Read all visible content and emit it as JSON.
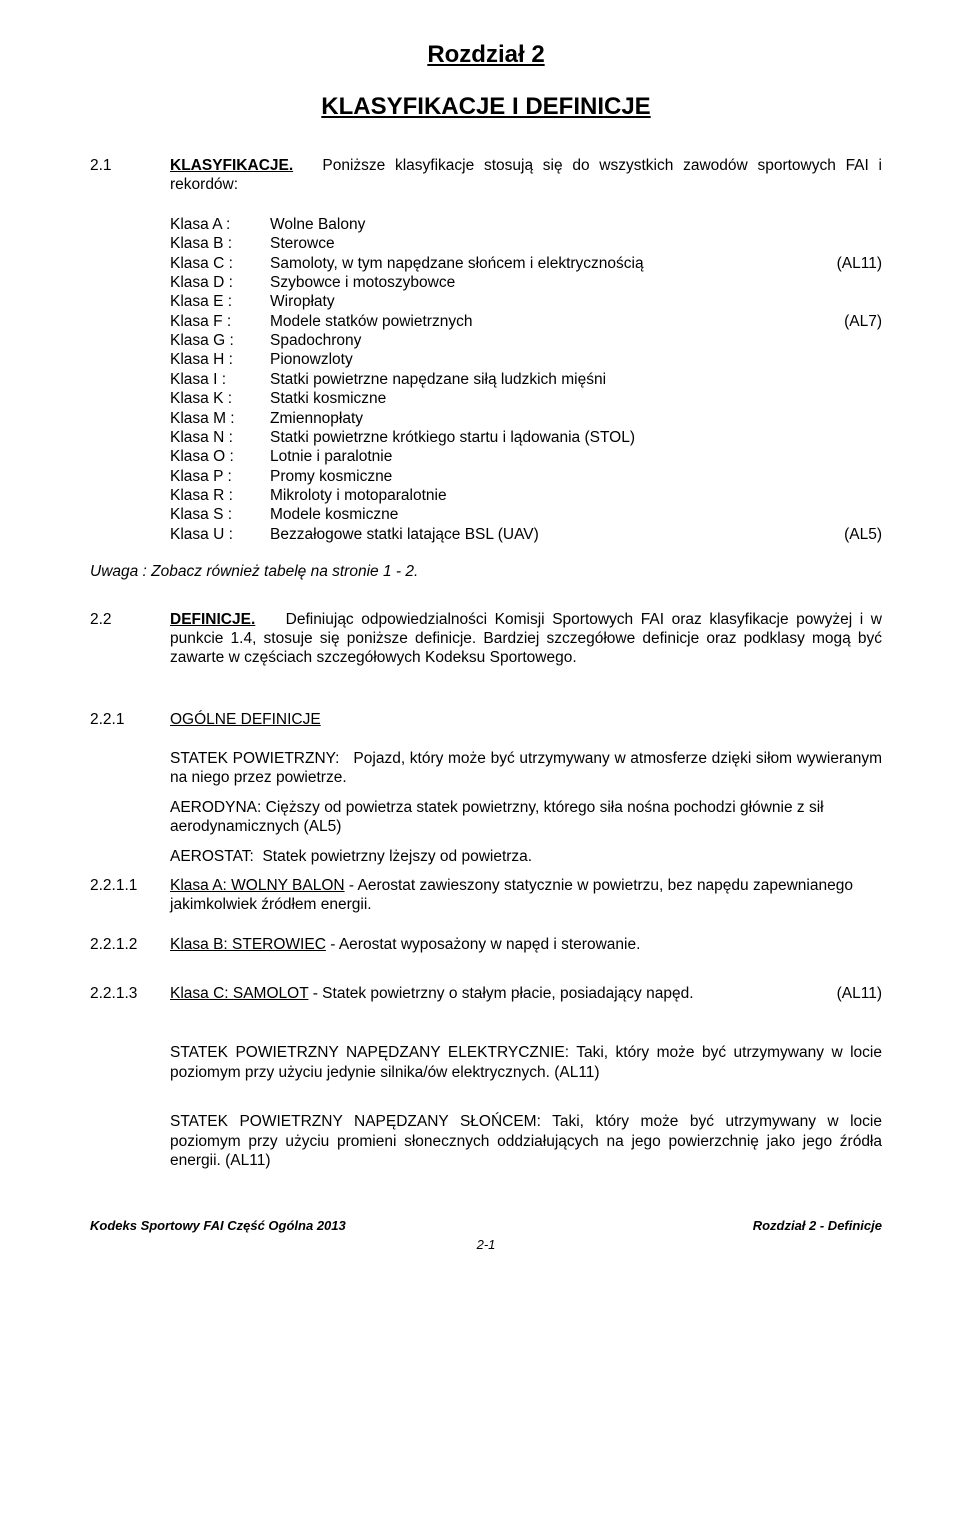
{
  "chapter": {
    "title": "Rozdział 2",
    "subtitle": "KLASYFIKACJE I DEFINICJE"
  },
  "s21": {
    "num": "2.1",
    "label": "KLASYFIKACJE.",
    "text": "Poniższe klasyfikacje stosują się do wszystkich zawodów sportowych FAI i rekordów:"
  },
  "classes": [
    {
      "label": "Klasa A :",
      "desc": "Wolne Balony",
      "tag": ""
    },
    {
      "label": "Klasa B :",
      "desc": "Sterowce",
      "tag": ""
    },
    {
      "label": "Klasa C :",
      "desc": "Samoloty, w tym napędzane słońcem i elektrycznością",
      "tag": "(AL11)"
    },
    {
      "label": "Klasa D :",
      "desc": "Szybowce i motoszybowce",
      "tag": ""
    },
    {
      "label": "Klasa E :",
      "desc": "Wiropłaty",
      "tag": ""
    },
    {
      "label": "Klasa F :",
      "desc": "Modele statków powietrznych",
      "tag": "(AL7)"
    },
    {
      "label": "Klasa G :",
      "desc": "Spadochrony",
      "tag": ""
    },
    {
      "label": "Klasa H :",
      "desc": "Pionowzloty",
      "tag": ""
    },
    {
      "label": "Klasa I :",
      "desc": "Statki powietrzne napędzane siłą ludzkich mięśni",
      "tag": ""
    },
    {
      "label": "Klasa K :",
      "desc": "Statki kosmiczne",
      "tag": ""
    },
    {
      "label": "Klasa M :",
      "desc": "Zmiennopłaty",
      "tag": ""
    },
    {
      "label": "Klasa N :",
      "desc": "Statki powietrzne krótkiego startu i lądowania (STOL)",
      "tag": ""
    },
    {
      "label": "Klasa O :",
      "desc": "Lotnie i paralotnie",
      "tag": ""
    },
    {
      "label": "Klasa P :",
      "desc": "Promy kosmiczne",
      "tag": ""
    },
    {
      "label": "Klasa R :",
      "desc": "Mikroloty i motoparalotnie",
      "tag": ""
    },
    {
      "label": "Klasa S :",
      "desc": "Modele kosmiczne",
      "tag": ""
    },
    {
      "label": "Klasa U :",
      "desc": "Bezzałogowe statki latające BSL (UAV)",
      "tag": "(AL5)"
    }
  ],
  "note": {
    "lead": "Uwaga :",
    "rest": " Zobacz również tabelę na stronie 1 - 2."
  },
  "s22": {
    "num": "2.2",
    "label": "DEFINICJE.",
    "text": "Definiując odpowiedzialności Komisji Sportowych FAI oraz klasyfikacje powyżej i w punkcie 1.4, stosuje się poniższe definicje. Bardziej szczegółowe definicje oraz podklasy mogą być zawarte w częściach szczegółowych Kodeksu Sportowego."
  },
  "s221": {
    "num": "2.2.1",
    "label": "OGÓLNE DEFINICJE"
  },
  "defs": {
    "statek_label": "STATEK POWIETRZNY:",
    "statek_text": "Pojazd, który może być utrzymywany w atmosferze dzięki siłom wywieranym na niego przez powietrze.",
    "aerodyna_label": "AERODYNA:",
    "aerodyna_text": "Cięższy od powietrza statek powietrzny, którego siła nośna pochodzi głównie z sił aerodynamicznych (AL5)",
    "aerostat_label": "AEROSTAT:",
    "aerostat_text": "Statek powietrzny lżejszy od powietrza."
  },
  "s2211": {
    "num": "2.2.1.1",
    "link": "Klasa A:  WOLNY BALON",
    "rest": " - Aerostat zawieszony statycznie w powietrzu, bez napędu zapewnianego jakimkolwiek źródłem energii."
  },
  "s2212": {
    "num": "2.2.1.2",
    "link": "Klasa B:  STEROWIEC",
    "rest": " - Aerostat wyposażony w napęd i sterowanie."
  },
  "s2213": {
    "num": "2.2.1.3",
    "link": "Klasa C:  SAMOLOT",
    "rest": " - Statek powietrzny o stałym płacie, posiadający napęd.",
    "tag": "(AL11)"
  },
  "elec": {
    "label": "STATEK POWIETRZNY NAPĘDZANY ELEKTRYCZNIE:",
    "rest": " Taki, który może być utrzymywany w locie poziomym przy użyciu jedynie silnika/ów elektrycznych. (AL11)"
  },
  "sun": {
    "label": "STATEK POWIETRZNY NAPĘDZANY SŁOŃCEM:",
    "rest": " Taki, który może być utrzymywany w locie poziomym przy użyciu promieni słonecznych oddziałujących na jego powierzchnię jako jego źródła energii. (AL11)"
  },
  "footer": {
    "left": "Kodeks Sportowy FAI Część Ogólna 2013",
    "right": "Rozdział 2 - Definicje",
    "center": "2-1"
  }
}
